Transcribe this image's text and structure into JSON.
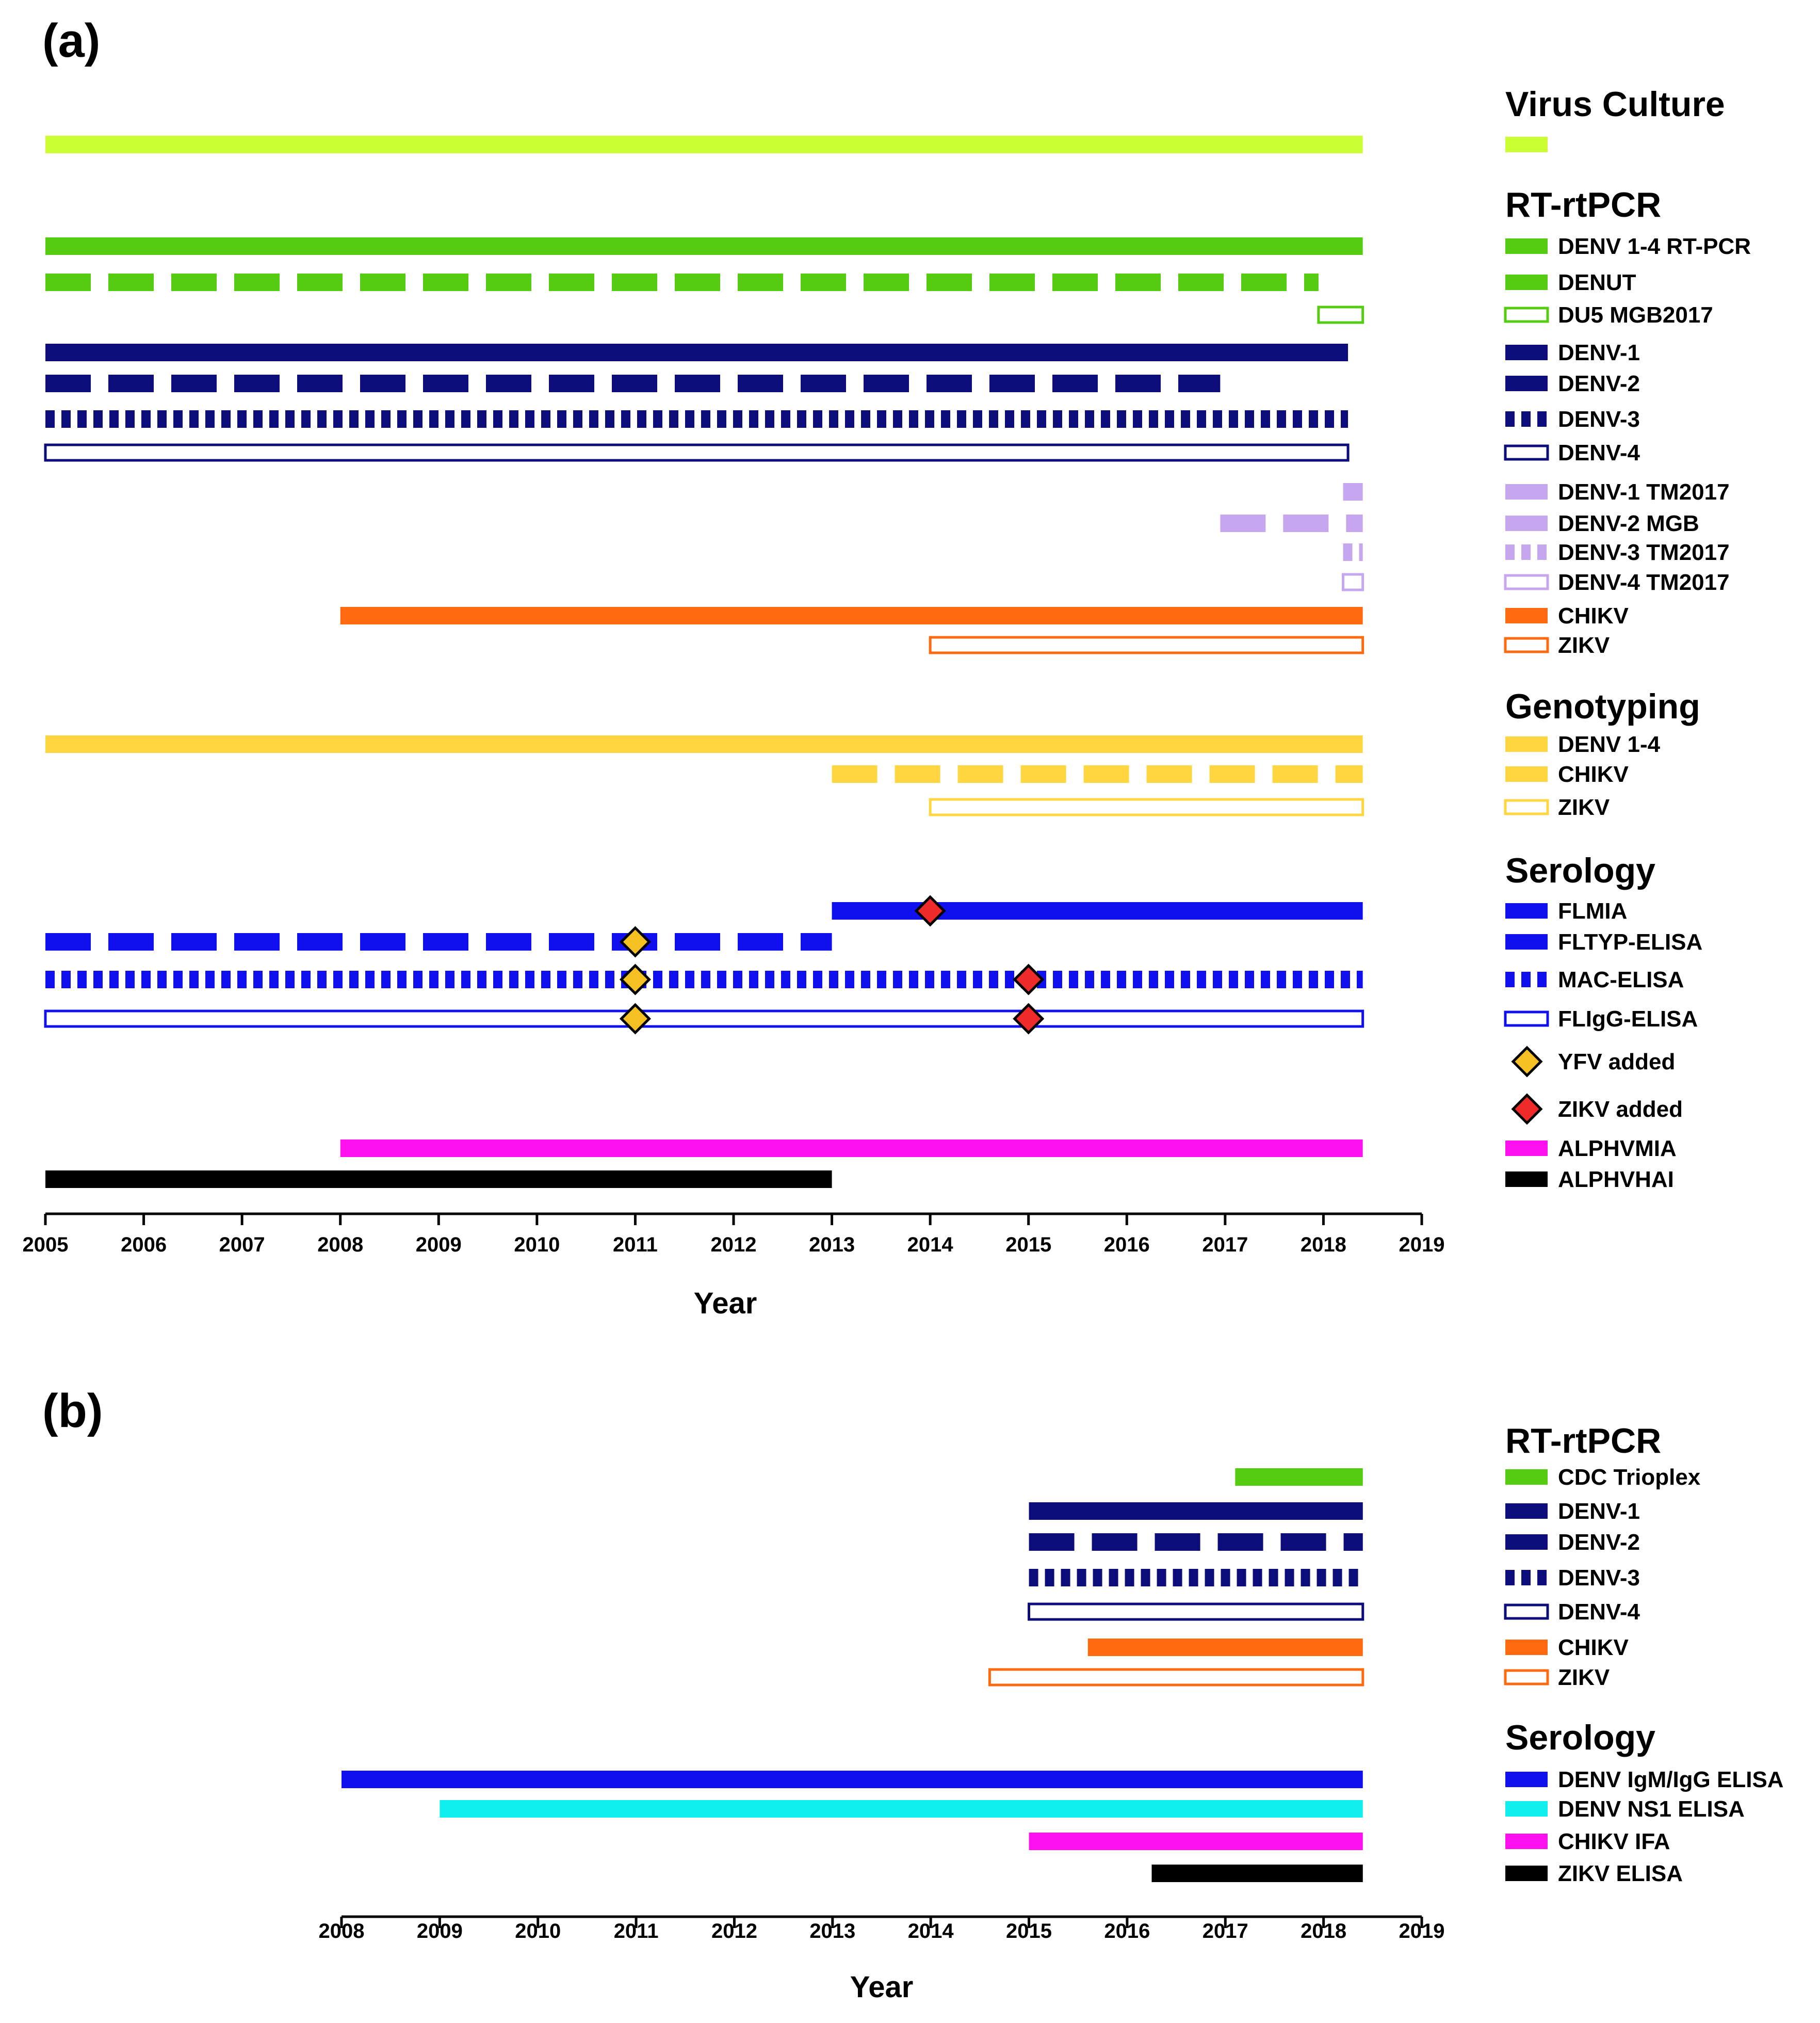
{
  "chart_data": [
    {
      "panel": "(a)",
      "type": "timeline",
      "xlabel": "Year",
      "xlim": [
        2005,
        2019
      ],
      "xticks": [
        2005,
        2006,
        2007,
        2008,
        2009,
        2010,
        2011,
        2012,
        2013,
        2014,
        2015,
        2016,
        2017,
        2018,
        2019
      ],
      "groups": [
        {
          "title": "Virus Culture",
          "items": [
            {
              "label": "",
              "style": "solid",
              "color": "#ccff33",
              "start": 2005.0,
              "end": 2018.4
            }
          ]
        },
        {
          "title": "RT-rtPCR",
          "items": [
            {
              "label": "DENV 1-4 RT-PCR",
              "style": "solid",
              "color": "#55cc11",
              "start": 2005.0,
              "end": 2018.4
            },
            {
              "label": "DENUT",
              "style": "dashed",
              "color": "#55cc11",
              "start": 2005.0,
              "end": 2017.95
            },
            {
              "label": "DU5 MGB2017",
              "style": "open",
              "color": "#55cc11",
              "start": 2017.95,
              "end": 2018.4
            },
            {
              "label": "DENV-1",
              "style": "solid",
              "color": "#0c0c7a",
              "start": 2005.0,
              "end": 2018.25
            },
            {
              "label": "DENV-2",
              "style": "dashed",
              "color": "#0c0c7a",
              "start": 2005.0,
              "end": 2016.95
            },
            {
              "label": "DENV-3",
              "style": "dotted",
              "color": "#0c0c7a",
              "start": 2005.0,
              "end": 2018.25
            },
            {
              "label": "DENV-4",
              "style": "open",
              "color": "#0c0c7a",
              "start": 2005.0,
              "end": 2018.25
            },
            {
              "label": "DENV-1 TM2017",
              "style": "solid",
              "color": "#c6a6ee",
              "start": 2018.2,
              "end": 2018.4
            },
            {
              "label": "DENV-2 MGB",
              "style": "dashed",
              "color": "#c6a6ee",
              "start": 2016.95,
              "end": 2018.4
            },
            {
              "label": "DENV-3 TM2017",
              "style": "dotted",
              "color": "#c6a6ee",
              "start": 2018.2,
              "end": 2018.4
            },
            {
              "label": "DENV-4 TM2017",
              "style": "open",
              "color": "#c6a6ee",
              "start": 2018.2,
              "end": 2018.4
            },
            {
              "label": "CHIKV",
              "style": "solid",
              "color": "#ff6a10",
              "start": 2008.0,
              "end": 2018.4
            },
            {
              "label": "ZIKV",
              "style": "open",
              "color": "#ff6a10",
              "start": 2014.0,
              "end": 2018.4
            }
          ]
        },
        {
          "title": "Genotyping",
          "items": [
            {
              "label": "DENV 1-4",
              "style": "solid",
              "color": "#ffd640",
              "start": 2005.0,
              "end": 2018.4
            },
            {
              "label": "CHIKV",
              "style": "dashed",
              "color": "#ffd640",
              "start": 2013.0,
              "end": 2018.4
            },
            {
              "label": "ZIKV",
              "style": "open",
              "color": "#ffd640",
              "start": 2014.0,
              "end": 2018.4
            }
          ]
        },
        {
          "title": "Serology",
          "items": [
            {
              "label": "FLMIA",
              "style": "solid",
              "color": "#1010ee",
              "start": 2013.0,
              "end": 2018.4
            },
            {
              "label": "FLTYP-ELISA",
              "style": "dashed",
              "color": "#1010ee",
              "start": 2005.0,
              "end": 2013.0
            },
            {
              "label": "MAC-ELISA",
              "style": "dotted",
              "color": "#1010ee",
              "start": 2005.0,
              "end": 2018.4
            },
            {
              "label": "FLIgG-ELISA",
              "style": "open",
              "color": "#1010ee",
              "start": 2005.0,
              "end": 2018.4
            },
            {
              "label": "YFV added",
              "style": "marker",
              "color": "#f5c021"
            },
            {
              "label": "ZIKV added",
              "style": "marker",
              "color": "#ee2a2a"
            },
            {
              "label": "ALPHVMIA",
              "style": "solid",
              "color": "#ff10ee",
              "start": 2008.0,
              "end": 2018.4
            },
            {
              "label": "ALPHVHAI",
              "style": "solid",
              "color": "#000000",
              "start": 2005.0,
              "end": 2013.0
            }
          ]
        }
      ],
      "markers": [
        {
          "row": "FLMIA",
          "x": 2014,
          "type": "ZIKV added"
        },
        {
          "row": "FLTYP-ELISA",
          "x": 2011,
          "type": "YFV added"
        },
        {
          "row": "MAC-ELISA",
          "x": 2011,
          "type": "YFV added"
        },
        {
          "row": "MAC-ELISA",
          "x": 2015,
          "type": "ZIKV added"
        },
        {
          "row": "FLIgG-ELISA",
          "x": 2011,
          "type": "YFV added"
        },
        {
          "row": "FLIgG-ELISA",
          "x": 2015,
          "type": "ZIKV added"
        }
      ]
    },
    {
      "panel": "(b)",
      "type": "timeline",
      "xlabel": "Year",
      "xlim": [
        2008,
        2019
      ],
      "xticks": [
        2008,
        2009,
        2010,
        2011,
        2012,
        2013,
        2014,
        2015,
        2016,
        2017,
        2018,
        2019
      ],
      "groups": [
        {
          "title": "RT-rtPCR",
          "items": [
            {
              "label": "CDC Trioplex",
              "style": "solid",
              "color": "#55cc11",
              "start": 2017.1,
              "end": 2018.4
            },
            {
              "label": "DENV-1",
              "style": "solid",
              "color": "#0c0c7a",
              "start": 2015.0,
              "end": 2018.4
            },
            {
              "label": "DENV-2",
              "style": "dashed",
              "color": "#0c0c7a",
              "start": 2015.0,
              "end": 2018.4
            },
            {
              "label": "DENV-3",
              "style": "dotted",
              "color": "#0c0c7a",
              "start": 2015.0,
              "end": 2018.4
            },
            {
              "label": "DENV-4",
              "style": "open",
              "color": "#0c0c7a",
              "start": 2015.0,
              "end": 2018.4
            },
            {
              "label": "CHIKV",
              "style": "solid",
              "color": "#ff6a10",
              "start": 2015.6,
              "end": 2018.4
            },
            {
              "label": "ZIKV",
              "style": "open",
              "color": "#ff6a10",
              "start": 2014.6,
              "end": 2018.4
            }
          ]
        },
        {
          "title": "Serology",
          "items": [
            {
              "label": "DENV IgM/IgG ELISA",
              "style": "solid",
              "color": "#1010ee",
              "start": 2008.0,
              "end": 2018.4
            },
            {
              "label": "DENV NS1 ELISA",
              "style": "solid",
              "color": "#11eeee",
              "start": 2009.0,
              "end": 2018.4
            },
            {
              "label": "CHIKV IFA",
              "style": "solid",
              "color": "#ff10ee",
              "start": 2015.0,
              "end": 2018.4
            },
            {
              "label": "ZIKV ELISA",
              "style": "solid",
              "color": "#000000",
              "start": 2016.25,
              "end": 2018.4
            }
          ]
        }
      ],
      "markers": []
    }
  ]
}
